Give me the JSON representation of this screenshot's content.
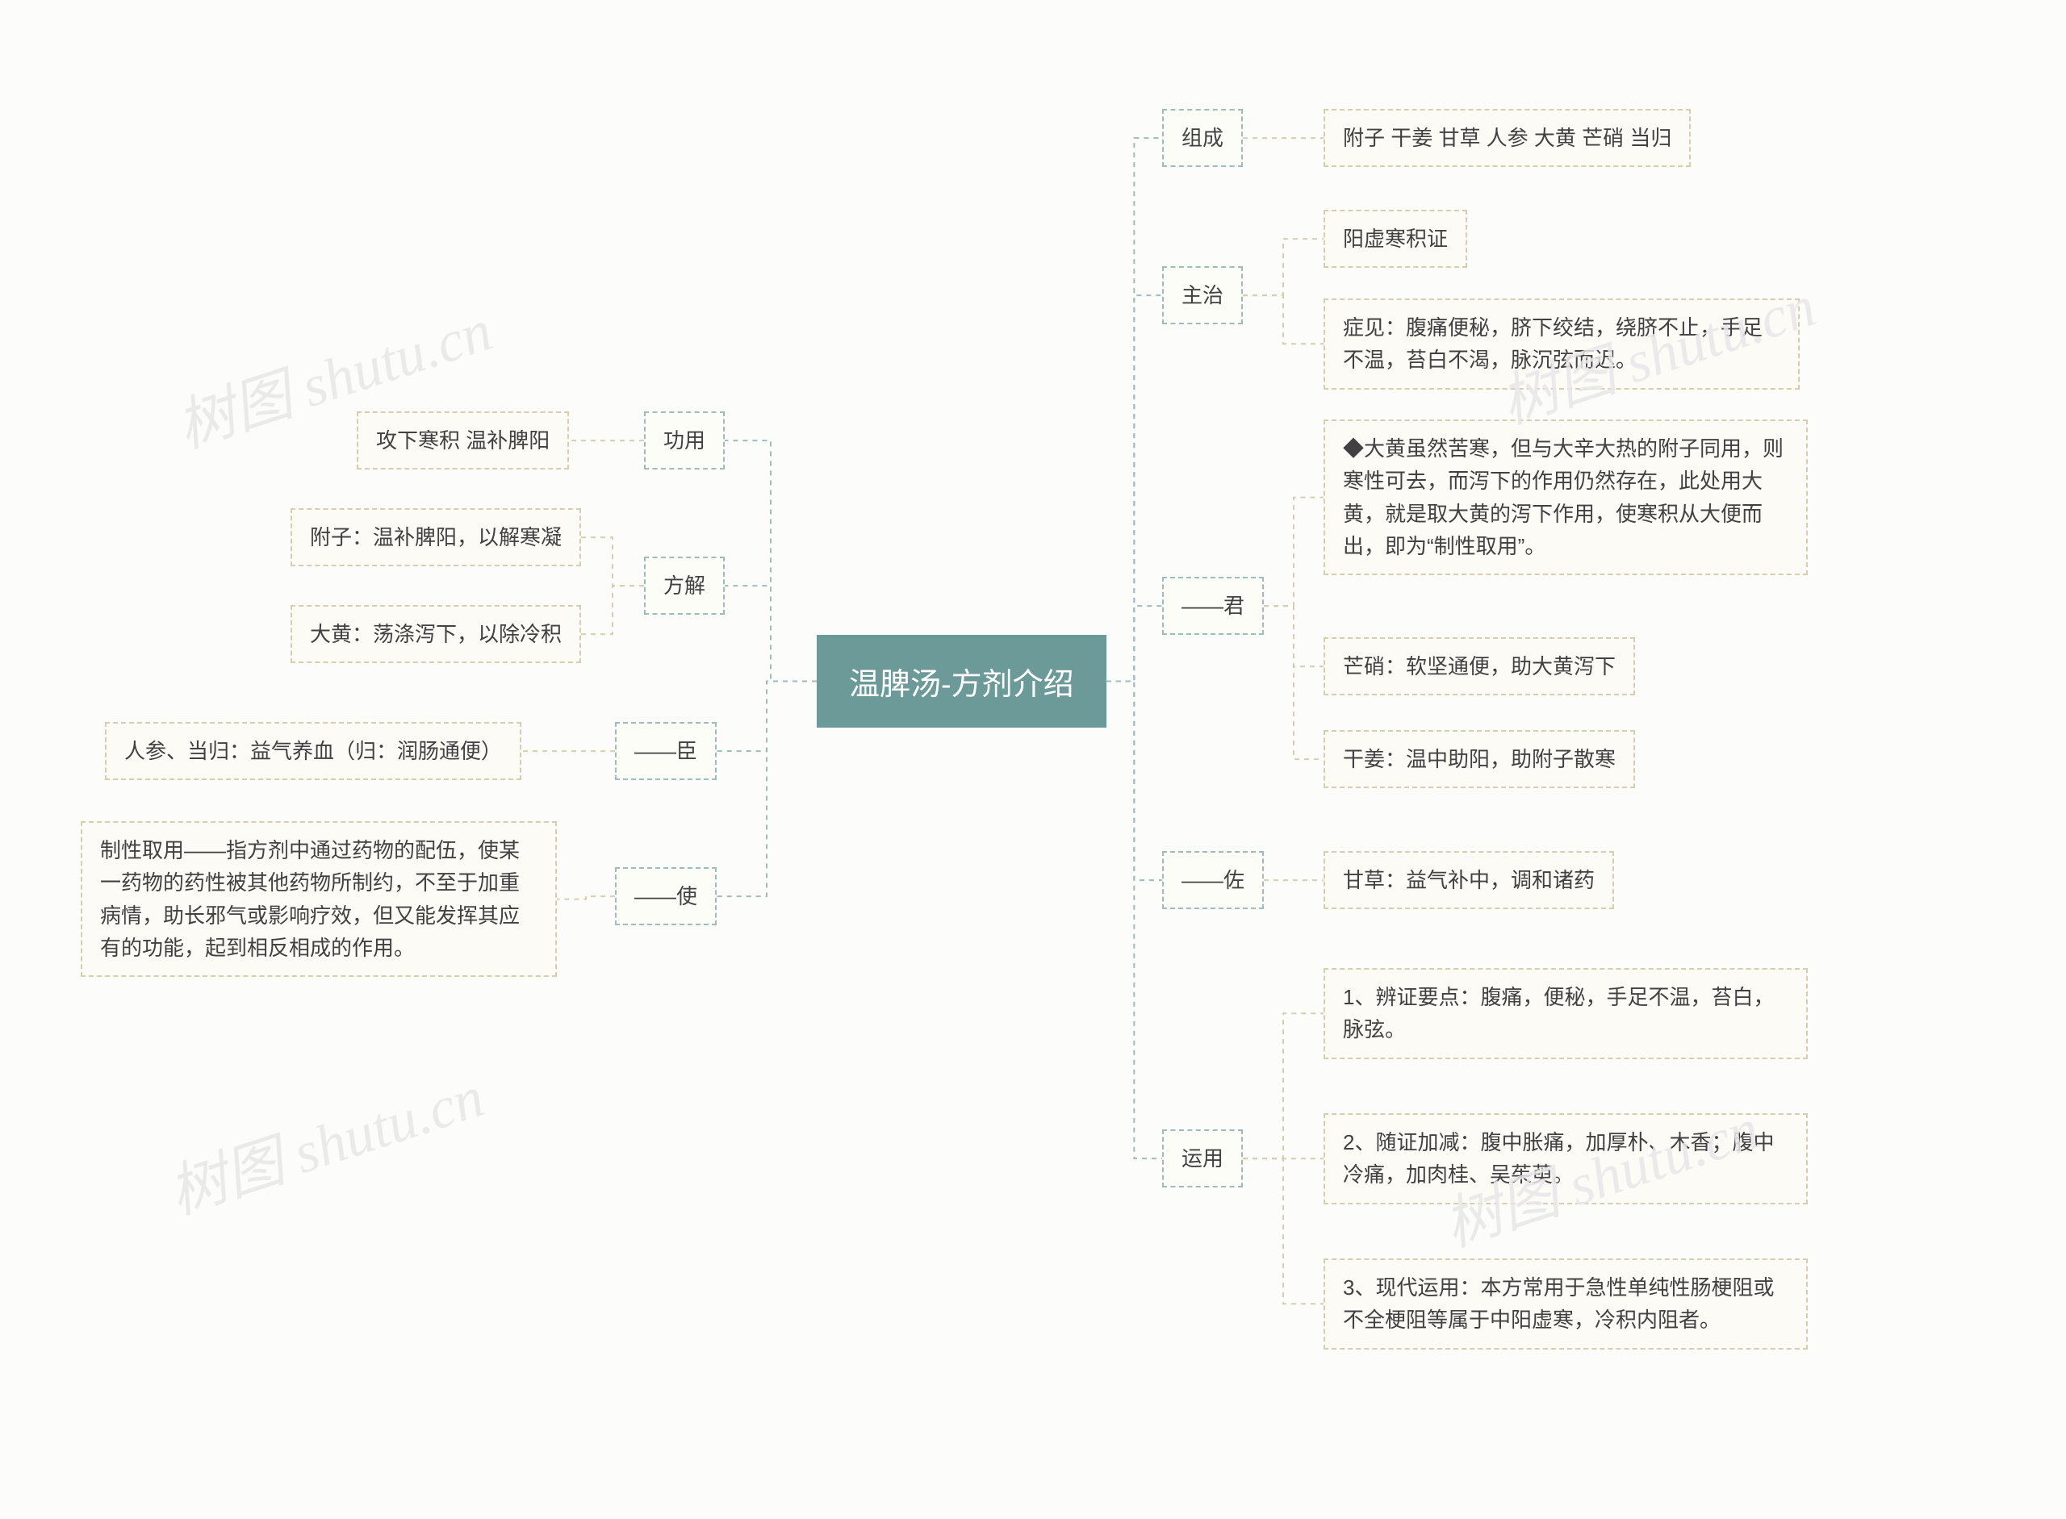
{
  "colors": {
    "canvas_bg": "#fcfcfa",
    "root_bg": "#6c9a98",
    "root_text": "#ffffff",
    "branch_border": "#9cbdbb",
    "branch_bg": "#fdfdf8",
    "leaf_border": "#d4cfae",
    "leaf_bg": "#fcfbf6",
    "text": "#414141",
    "watermark": "#e8e8e8"
  },
  "root": {
    "label": "温脾汤-方剂介绍"
  },
  "left": {
    "gongyong": {
      "label": "功用",
      "leaf": "攻下寒积 温补脾阳"
    },
    "fangjie": {
      "label": "方解",
      "leaves": [
        "附子：温补脾阳，以解寒凝",
        "大黄：荡涤泻下，以除冷积"
      ]
    },
    "chen": {
      "label": "——臣",
      "leaf": "人参、当归：益气养血（归：润肠通便）"
    },
    "shi": {
      "label": "——使",
      "leaf": "制性取用——指方剂中通过药物的配伍，使某一药物的药性被其他药物所制约，不至于加重病情，助长邪气或影响疗效，但又能发挥其应有的功能，起到相反相成的作用。"
    }
  },
  "right": {
    "zucheng": {
      "label": "组成",
      "leaf": "附子 干姜 甘草 人参 大黄 芒硝 当归"
    },
    "zhuzhi": {
      "label": "主治",
      "leaves": [
        "阳虚寒积证",
        "症见：腹痛便秘，脐下绞结，绕脐不止，手足不温，苔白不渴，脉沉弦而迟。"
      ]
    },
    "jun": {
      "label": "——君",
      "leaves": [
        "◆大黄虽然苦寒，但与大辛大热的附子同用，则寒性可去，而泻下的作用仍然存在，此处用大黄，就是取大黄的泻下作用，使寒积从大便而出，即为“制性取用”。",
        "芒硝：软坚通便，助大黄泻下",
        "干姜：温中助阳，助附子散寒"
      ]
    },
    "zuo": {
      "label": "——佐",
      "leaf": "甘草：益气补中，调和诸药"
    },
    "yunyong": {
      "label": "运用",
      "leaves": [
        "1、辨证要点：腹痛，便秘，手足不温，苔白，脉弦。",
        "2、随证加减：腹中胀痛，加厚朴、木香；腹中冷痛，加肉桂、吴茱萸。",
        "3、现代运用：本方常用于急性单纯性肠梗阻或不全梗阻等属于中阳虚寒，冷积内阻者。"
      ]
    }
  },
  "watermark": "树图 shutu.cn"
}
